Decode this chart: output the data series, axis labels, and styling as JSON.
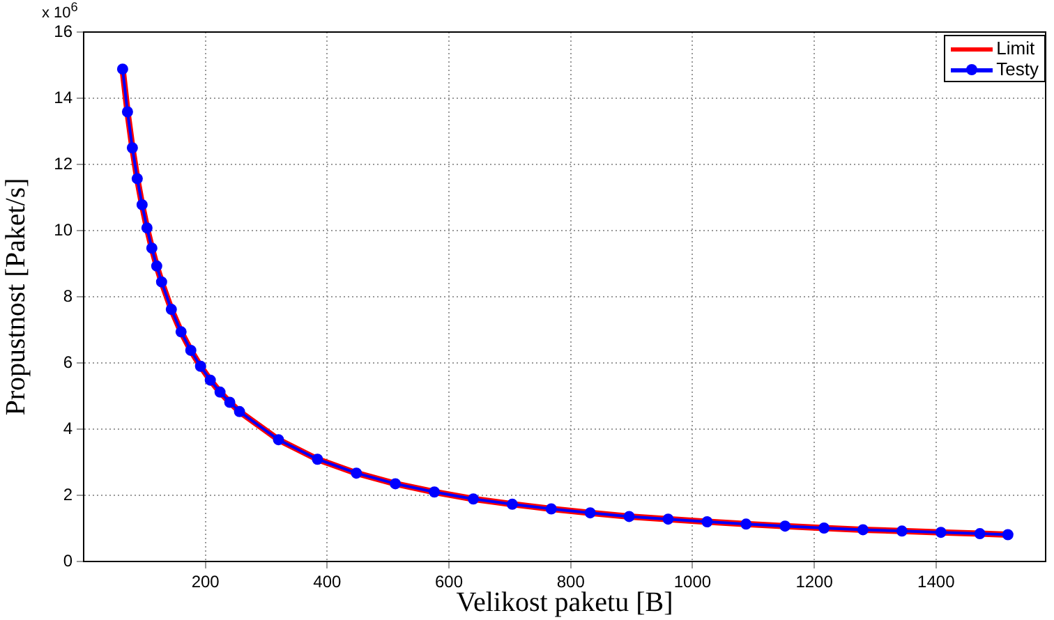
{
  "chart_data": {
    "type": "line",
    "xlabel": "Velikost paketu [B]",
    "ylabel": "Propustnost [Paket/s]",
    "annotations": [
      "x 10$^{6}$"
    ],
    "x": [
      64,
      72,
      80,
      88,
      96,
      104,
      112,
      120,
      128,
      144,
      160,
      176,
      192,
      208,
      224,
      240,
      256,
      320,
      384,
      448,
      512,
      576,
      640,
      704,
      768,
      832,
      896,
      960,
      1024,
      1088,
      1152,
      1216,
      1280,
      1344,
      1408,
      1472,
      1518
    ],
    "series": [
      {
        "name": "Limit",
        "color": "#ff0000",
        "marker": "none",
        "values": [
          14.88,
          13.59,
          12.5,
          11.57,
          10.78,
          10.08,
          9.47,
          8.93,
          8.45,
          7.62,
          6.94,
          6.38,
          5.9,
          5.48,
          5.12,
          4.81,
          4.53,
          3.68,
          3.09,
          2.67,
          2.35,
          2.1,
          1.89,
          1.73,
          1.59,
          1.47,
          1.36,
          1.28,
          1.2,
          1.13,
          1.07,
          1.01,
          0.96,
          0.92,
          0.88,
          0.84,
          0.81
        ]
      },
      {
        "name": "Testy",
        "color": "#0000ff",
        "marker": "circle",
        "values": [
          14.88,
          13.59,
          12.5,
          11.57,
          10.78,
          10.08,
          9.47,
          8.93,
          8.45,
          7.62,
          6.94,
          6.38,
          5.9,
          5.48,
          5.12,
          4.81,
          4.53,
          3.68,
          3.09,
          2.67,
          2.35,
          2.1,
          1.89,
          1.73,
          1.59,
          1.47,
          1.36,
          1.28,
          1.2,
          1.13,
          1.07,
          1.01,
          0.96,
          0.92,
          0.88,
          0.84,
          0.81
        ]
      }
    ],
    "xlim": [
      0,
      1580
    ],
    "xticks": [
      200,
      400,
      600,
      800,
      1000,
      1200,
      1400
    ],
    "ylim": [
      0,
      16
    ],
    "yticks": [
      0,
      2,
      4,
      6,
      8,
      10,
      12,
      14,
      16
    ],
    "grid": true,
    "legend": "top right",
    "line_style": "solid"
  }
}
